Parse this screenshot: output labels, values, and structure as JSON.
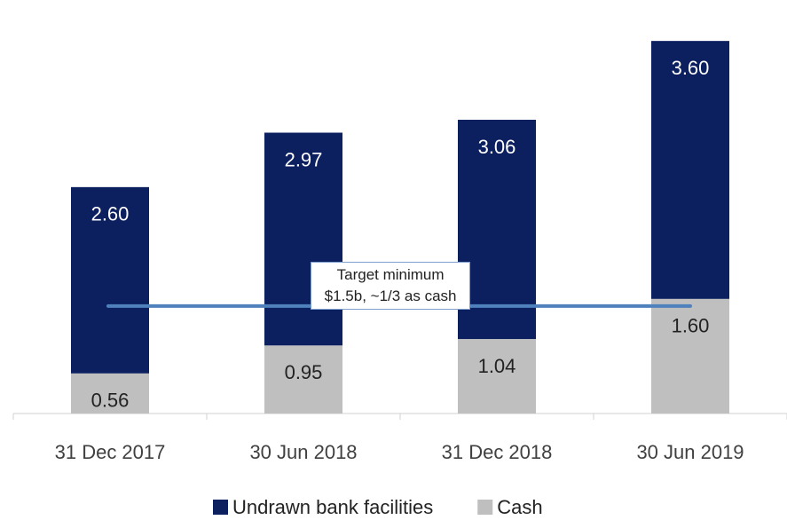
{
  "chart_data": {
    "type": "stacked_bar",
    "categories": [
      "31 Dec 2017",
      "30 Jun 2018",
      "31 Dec 2018",
      "30 Jun 2019"
    ],
    "series": [
      {
        "name": "Cash",
        "color": "#bfbfbf",
        "values": [
          0.56,
          0.95,
          1.04,
          1.6
        ],
        "value_labels": [
          "0.56",
          "0.95",
          "1.04",
          "1.60"
        ]
      },
      {
        "name": "Undrawn bank facilities",
        "color": "#0c1f5e",
        "values": [
          2.6,
          2.97,
          3.06,
          3.6
        ],
        "value_labels": [
          "2.60",
          "2.97",
          "3.06",
          "3.60"
        ]
      }
    ],
    "ylim": [
      0,
      5.4
    ],
    "target_line": {
      "value": 1.5,
      "color": "#4f81bd",
      "label": "Target minimum $1.5b, ~1/3 as cash"
    },
    "legend_order": [
      1,
      0
    ]
  }
}
